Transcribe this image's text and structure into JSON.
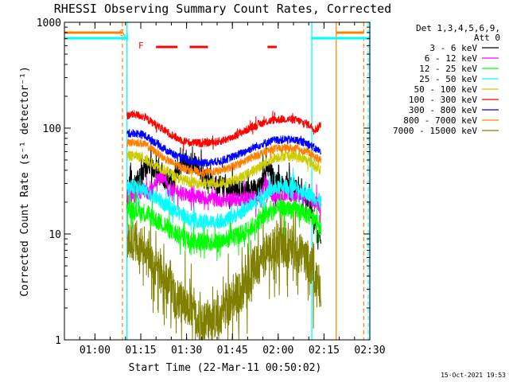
{
  "chart_data": {
    "type": "line",
    "title": "RHESSI Observing Summary Count Rates, Corrected",
    "xlabel": "Start Time (22-Mar-11 00:50:02)",
    "ylabel": "Corrected Count Rate (s⁻¹ detector⁻¹)",
    "yscale": "log",
    "ylim": [
      1,
      1000
    ],
    "xlim_minutes": [
      50,
      150
    ],
    "x_ticks": [
      {
        "minute": 60,
        "label": "01:00"
      },
      {
        "minute": 75,
        "label": "01:15"
      },
      {
        "minute": 90,
        "label": "01:30"
      },
      {
        "minute": 105,
        "label": "01:45"
      },
      {
        "minute": 120,
        "label": "02:00"
      },
      {
        "minute": 135,
        "label": "02:15"
      },
      {
        "minute": 150,
        "label": "02:30"
      }
    ],
    "y_ticks": [
      {
        "value": 1,
        "label": "1"
      },
      {
        "value": 10,
        "label": "10"
      },
      {
        "value": 100,
        "label": "100"
      },
      {
        "value": 1000,
        "label": "1000"
      }
    ],
    "legend_header": [
      "Det 1,3,4,5,6,9,",
      "Att 0"
    ],
    "legend_position": "right",
    "series": [
      {
        "name": "3 - 6 keV",
        "color": "#000000",
        "noise": 0.09,
        "spikes": 0.25,
        "points": [
          [
            70.5,
            28
          ],
          [
            73,
            30
          ],
          [
            76,
            40
          ],
          [
            78,
            45
          ],
          [
            80,
            38
          ],
          [
            83,
            32
          ],
          [
            86,
            30
          ],
          [
            89,
            50
          ],
          [
            90,
            45
          ],
          [
            93,
            45
          ],
          [
            96,
            34
          ],
          [
            100,
            30
          ],
          [
            105,
            27
          ],
          [
            110,
            26
          ],
          [
            114,
            28
          ],
          [
            117,
            42
          ],
          [
            119,
            32
          ],
          [
            122,
            30
          ],
          [
            126,
            28
          ],
          [
            130,
            22
          ],
          [
            132,
            12
          ],
          [
            133,
            9
          ],
          [
            134,
            10
          ]
        ]
      },
      {
        "name": "6 - 12 keV",
        "color": "#ff00ff",
        "noise": 0.07,
        "spikes": 0.1,
        "points": [
          [
            70.5,
            22
          ],
          [
            73,
            23
          ],
          [
            76,
            26
          ],
          [
            78,
            24
          ],
          [
            80,
            33
          ],
          [
            83,
            36
          ],
          [
            84,
            26
          ],
          [
            86,
            26
          ],
          [
            88,
            24
          ],
          [
            92,
            23
          ],
          [
            96,
            22
          ],
          [
            100,
            21
          ],
          [
            105,
            21
          ],
          [
            110,
            22
          ],
          [
            114,
            22
          ],
          [
            116,
            30
          ],
          [
            118,
            23
          ],
          [
            122,
            24
          ],
          [
            126,
            23
          ],
          [
            130,
            22
          ],
          [
            132,
            20
          ],
          [
            134,
            18
          ]
        ]
      },
      {
        "name": "12 - 25 keV",
        "color": "#00ff00",
        "noise": 0.09,
        "spikes": 0.12,
        "points": [
          [
            70.5,
            17
          ],
          [
            73,
            17
          ],
          [
            76,
            16
          ],
          [
            79,
            14
          ],
          [
            83,
            12
          ],
          [
            86,
            10
          ],
          [
            90,
            9
          ],
          [
            95,
            8.5
          ],
          [
            100,
            8.5
          ],
          [
            104,
            9
          ],
          [
            108,
            10
          ],
          [
            112,
            12
          ],
          [
            116,
            15
          ],
          [
            119,
            17
          ],
          [
            122,
            17
          ],
          [
            126,
            17
          ],
          [
            130,
            15
          ],
          [
            132,
            13
          ],
          [
            134,
            12
          ]
        ]
      },
      {
        "name": "25 - 50 keV",
        "color": "#00ffff",
        "noise": 0.07,
        "spikes": 0.08,
        "points": [
          [
            70.5,
            27
          ],
          [
            73,
            28
          ],
          [
            76,
            26
          ],
          [
            79,
            23
          ],
          [
            83,
            19
          ],
          [
            87,
            16
          ],
          [
            91,
            14
          ],
          [
            95,
            13
          ],
          [
            100,
            13
          ],
          [
            104,
            14
          ],
          [
            108,
            16
          ],
          [
            112,
            20
          ],
          [
            116,
            24
          ],
          [
            119,
            27
          ],
          [
            122,
            28
          ],
          [
            126,
            27
          ],
          [
            130,
            24
          ],
          [
            132,
            22
          ],
          [
            134,
            20
          ]
        ]
      },
      {
        "name": "50 - 100 keV",
        "color": "#cccc00",
        "noise": 0.05,
        "spikes": 0.04,
        "points": [
          [
            70.5,
            54
          ],
          [
            73,
            55
          ],
          [
            76,
            52
          ],
          [
            79,
            46
          ],
          [
            83,
            40
          ],
          [
            87,
            34
          ],
          [
            91,
            31
          ],
          [
            95,
            30
          ],
          [
            100,
            30
          ],
          [
            104,
            31
          ],
          [
            108,
            34
          ],
          [
            112,
            40
          ],
          [
            116,
            47
          ],
          [
            119,
            53
          ],
          [
            122,
            55
          ],
          [
            126,
            54
          ],
          [
            130,
            49
          ],
          [
            132,
            44
          ],
          [
            134,
            40
          ]
        ]
      },
      {
        "name": "100 - 300 keV",
        "color": "#ff0000",
        "noise": 0.04,
        "spikes": 0.03,
        "points": [
          [
            70.5,
            132
          ],
          [
            73,
            135
          ],
          [
            76,
            128
          ],
          [
            79,
            112
          ],
          [
            83,
            94
          ],
          [
            87,
            80
          ],
          [
            91,
            73
          ],
          [
            95,
            72
          ],
          [
            100,
            74
          ],
          [
            104,
            80
          ],
          [
            108,
            91
          ],
          [
            112,
            104
          ],
          [
            116,
            115
          ],
          [
            119,
            120
          ],
          [
            122,
            122
          ],
          [
            126,
            119
          ],
          [
            130,
            108
          ],
          [
            132,
            98
          ],
          [
            133,
            100
          ],
          [
            134,
            112
          ]
        ]
      },
      {
        "name": "300 - 800 keV",
        "color": "#0000ff",
        "noise": 0.04,
        "spikes": 0.02,
        "points": [
          [
            70.5,
            89
          ],
          [
            73,
            90
          ],
          [
            76,
            86
          ],
          [
            79,
            76
          ],
          [
            83,
            63
          ],
          [
            87,
            54
          ],
          [
            91,
            49
          ],
          [
            95,
            47
          ],
          [
            100,
            48
          ],
          [
            104,
            52
          ],
          [
            108,
            58
          ],
          [
            112,
            66
          ],
          [
            116,
            73
          ],
          [
            119,
            77
          ],
          [
            122,
            78
          ],
          [
            126,
            77
          ],
          [
            130,
            71
          ],
          [
            132,
            64
          ],
          [
            134,
            60
          ]
        ]
      },
      {
        "name": "800 - 7000 keV",
        "color": "#ff8000",
        "noise": 0.04,
        "spikes": 0.02,
        "points": [
          [
            70.5,
            72
          ],
          [
            73,
            74
          ],
          [
            76,
            71
          ],
          [
            79,
            62
          ],
          [
            83,
            51
          ],
          [
            87,
            44
          ],
          [
            91,
            40
          ],
          [
            95,
            38
          ],
          [
            100,
            39
          ],
          [
            104,
            42
          ],
          [
            108,
            47
          ],
          [
            112,
            54
          ],
          [
            116,
            60
          ],
          [
            119,
            64
          ],
          [
            122,
            65
          ],
          [
            126,
            64
          ],
          [
            130,
            59
          ],
          [
            132,
            53
          ],
          [
            134,
            50
          ]
        ]
      },
      {
        "name": "7000 - 15000 keV",
        "color": "#808000",
        "noise": 0.2,
        "spikes": 0.2,
        "points": [
          [
            70.5,
            8
          ],
          [
            73,
            9
          ],
          [
            76,
            7
          ],
          [
            79,
            5
          ],
          [
            82,
            4
          ],
          [
            85,
            3
          ],
          [
            88,
            2.3
          ],
          [
            91,
            1.8
          ],
          [
            95,
            1.5
          ],
          [
            100,
            1.6
          ],
          [
            104,
            2.2
          ],
          [
            108,
            3
          ],
          [
            112,
            4.5
          ],
          [
            116,
            6.5
          ],
          [
            119,
            7.5
          ],
          [
            122,
            7.5
          ],
          [
            126,
            7
          ],
          [
            130,
            5.5
          ],
          [
            132,
            4
          ],
          [
            134,
            3
          ]
        ]
      }
    ],
    "annotations": {
      "flag_letters": [
        {
          "text": "S",
          "color": "#ff8000"
        },
        {
          "text": "N",
          "color": "#00ffff"
        },
        {
          "text": "F",
          "color": "#ff0000"
        }
      ],
      "flare_segments_minutes": [
        [
          80,
          87
        ],
        [
          91,
          97
        ],
        [
          116.5,
          119.5
        ]
      ],
      "saa_flag_minutes": [
        [
          50,
          69
        ],
        [
          139,
          148
        ]
      ],
      "night_flag_minutes": [
        [
          50,
          70.5
        ],
        [
          131,
          150
        ]
      ],
      "saa_boundaries_minutes": [
        69,
        139,
        148
      ],
      "night_boundaries_minutes": [
        70.5,
        131,
        150
      ]
    },
    "timestamp": "15-Oct-2021 19:53"
  }
}
